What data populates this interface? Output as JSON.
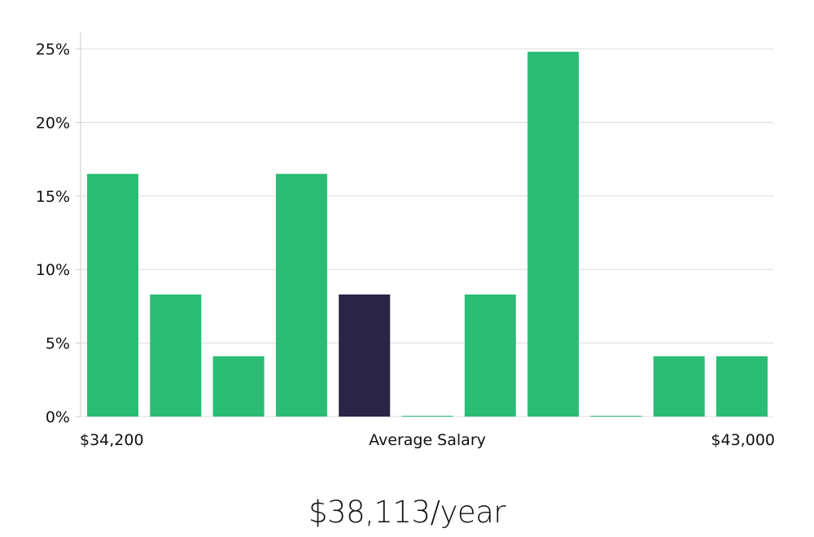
{
  "chart_data": {
    "type": "bar",
    "title": "",
    "xlabel": "Average Salary",
    "ylabel": "",
    "x_range_labels": {
      "min": "$34,200",
      "max": "$43,000"
    },
    "y_ticks": [
      "0%",
      "5%",
      "10%",
      "15%",
      "20%",
      "25%"
    ],
    "ylim": [
      0,
      26
    ],
    "grid": true,
    "values": [
      16.5,
      8.3,
      4.1,
      16.5,
      8.3,
      0,
      8.3,
      24.8,
      0,
      4.1,
      4.1
    ],
    "highlight_index": 4,
    "colors": {
      "bar": "#2bbd75",
      "highlight": "#2a2546",
      "grid": "#dcdcdc",
      "axis": "#cccccc"
    }
  },
  "salary": {
    "value": "$38,113/year"
  }
}
